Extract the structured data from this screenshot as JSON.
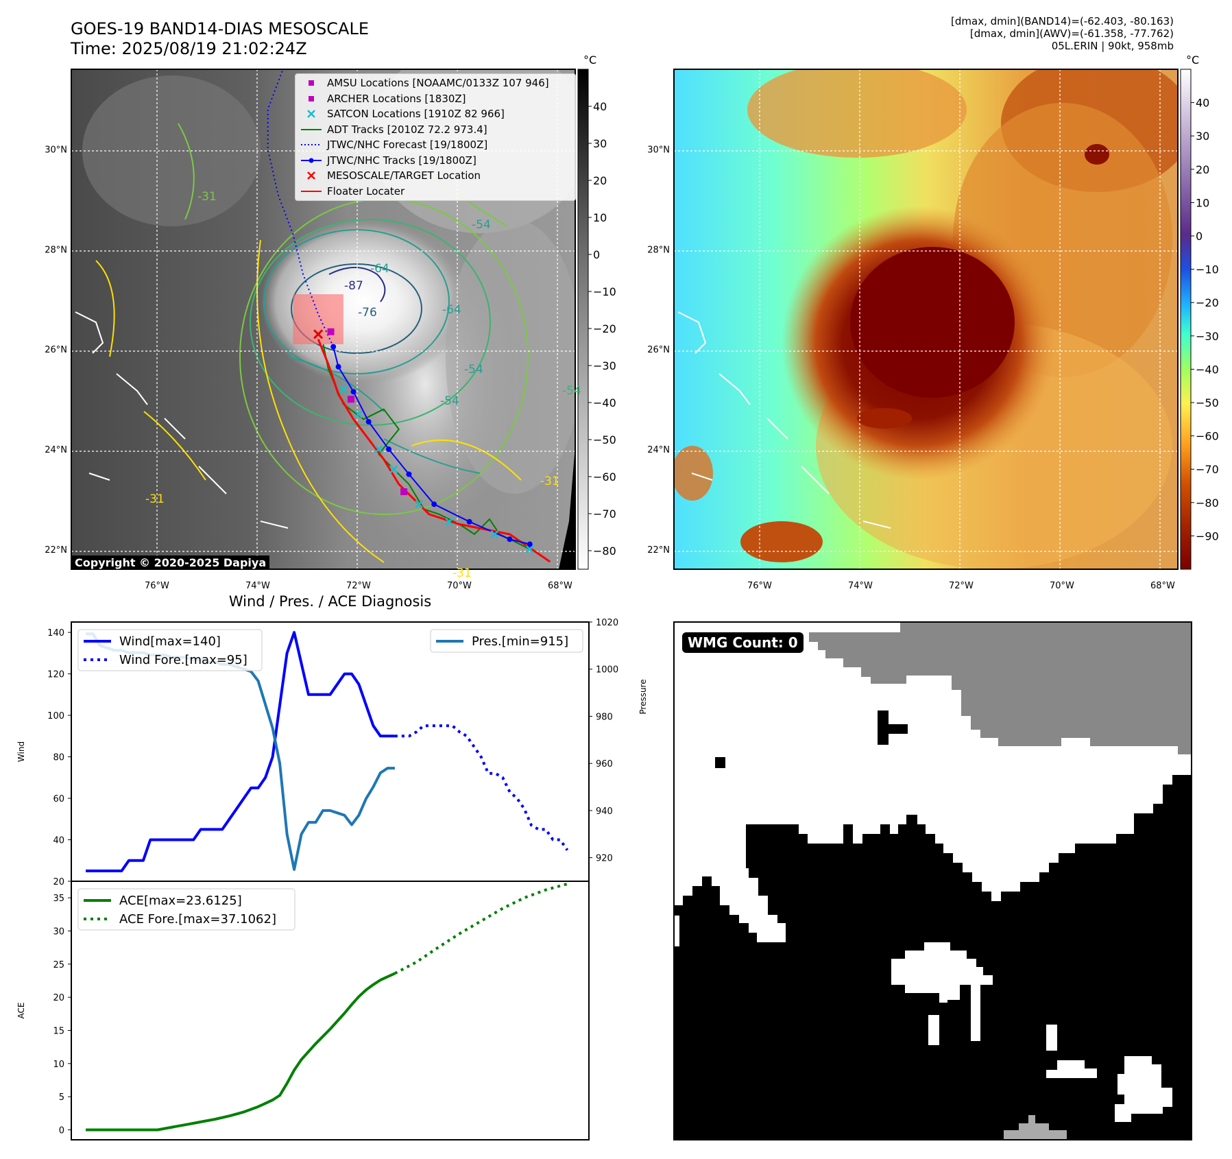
{
  "header": {
    "title_line1": "GOES-19 BAND14-DIAS MESOSCALE",
    "title_line2": "Time: 2025/08/19 21:02:24Z",
    "info_line1": "[dmax, dmin](BAND14)=(-62.403, -80.163)",
    "info_line2": "[dmax, dmin](AWV)=(-61.358, -77.762)",
    "info_line3": "05L.ERIN | 90kt, 958mb"
  },
  "map": {
    "lon_labels": [
      "76°W",
      "74°W",
      "72°W",
      "70°W",
      "68°W"
    ],
    "lat_labels": [
      "30°N",
      "28°N",
      "26°N",
      "24°N",
      "22°N"
    ],
    "lon_range": [
      -77.7,
      -67.7
    ],
    "lat_range": [
      21.6,
      31.6
    ],
    "copyright": "Copyright © 2020-2025 Dapiya",
    "contour_labels": [
      "-87",
      "-76",
      "-64",
      "-64",
      "-54",
      "-54",
      "-54",
      "-31",
      "-31",
      "-31",
      "-31",
      "-54"
    ],
    "legend": [
      {
        "label": "AMSU Locations [NOAAMC/0133Z 107 946]",
        "color": "#c000c0",
        "marker": "square"
      },
      {
        "label": "ARCHER Locations [1830Z]",
        "color": "#c000c0",
        "marker": "square"
      },
      {
        "label": "SATCON Locations [1910Z 82 966]",
        "color": "#17becf",
        "marker": "x"
      },
      {
        "label": "ADT Tracks [2010Z 72.2 973.4]",
        "color": "#008000",
        "marker": "line"
      },
      {
        "label": "JTWC/NHC Forecast [19/1800Z]",
        "color": "#0000ff",
        "marker": "dotted"
      },
      {
        "label": "JTWC/NHC Tracks [19/1800Z]",
        "color": "#0000ff",
        "marker": "line-dot"
      },
      {
        "label": "MESOSCALE/TARGET Location",
        "color": "#ff0000",
        "marker": "x"
      },
      {
        "label": "Floater Locater",
        "color": "#ff0000",
        "marker": "line"
      }
    ],
    "tracks": {
      "jtwc": [
        [
          -68.6,
          22.1
        ],
        [
          -69.0,
          22.2
        ],
        [
          -69.8,
          22.55
        ],
        [
          -70.5,
          22.9
        ],
        [
          -71.0,
          23.5
        ],
        [
          -71.4,
          24.0
        ],
        [
          -71.8,
          24.55
        ],
        [
          -72.1,
          25.15
        ],
        [
          -72.4,
          25.65
        ],
        [
          -72.5,
          26.05
        ]
      ],
      "forecast": [
        [
          -72.5,
          26.05
        ],
        [
          -72.8,
          26.7
        ],
        [
          -73.1,
          27.5
        ],
        [
          -73.3,
          28.3
        ],
        [
          -73.6,
          29.1
        ],
        [
          -73.8,
          30.0
        ],
        [
          -73.8,
          30.8
        ],
        [
          -73.5,
          31.6
        ]
      ],
      "adt": [
        [
          -68.6,
          22.0
        ],
        [
          -69.2,
          22.3
        ],
        [
          -69.4,
          22.6
        ],
        [
          -69.7,
          22.3
        ],
        [
          -70.0,
          22.5
        ],
        [
          -70.4,
          22.7
        ],
        [
          -70.7,
          22.8
        ],
        [
          -71.0,
          23.3
        ],
        [
          -71.3,
          23.6
        ],
        [
          -71.6,
          23.9
        ],
        [
          -71.2,
          24.4
        ],
        [
          -71.5,
          24.8
        ],
        [
          -71.9,
          24.6
        ],
        [
          -72.3,
          24.9
        ],
        [
          -72.6,
          25.6
        ],
        [
          -72.7,
          26.1
        ]
      ],
      "floater": [
        [
          -68.2,
          21.75
        ],
        [
          -69.0,
          22.3
        ],
        [
          -70.0,
          22.5
        ],
        [
          -70.6,
          22.7
        ],
        [
          -71.2,
          23.3
        ],
        [
          -71.5,
          23.8
        ],
        [
          -71.8,
          24.2
        ],
        [
          -72.1,
          24.6
        ],
        [
          -72.4,
          25.1
        ],
        [
          -72.6,
          25.7
        ],
        [
          -72.8,
          26.2
        ]
      ],
      "archer": [
        [
          -72.55,
          26.35
        ],
        [
          -72.15,
          25.0
        ],
        [
          -71.1,
          23.15
        ]
      ],
      "satcon": [
        [
          -72.3,
          25.2
        ],
        [
          -72.0,
          24.7
        ],
        [
          -71.6,
          24.0
        ],
        [
          -71.3,
          23.6
        ],
        [
          -70.8,
          22.9
        ],
        [
          -70.2,
          22.55
        ],
        [
          -69.3,
          22.3
        ],
        [
          -68.6,
          22.0
        ]
      ],
      "target": [
        -72.8,
        26.3
      ],
      "target_box": {
        "lon": [
          -73.3,
          -72.3
        ],
        "lat": [
          26.1,
          27.1
        ]
      }
    },
    "left_colorbar": {
      "unit": "°C",
      "ticks": [
        "40",
        "30",
        "20",
        "10",
        "0",
        "−10",
        "−20",
        "−30",
        "−40",
        "−50",
        "−60",
        "−70",
        "−80"
      ],
      "range": [
        -85,
        50
      ]
    },
    "right_colorbar": {
      "unit": "°C",
      "ticks": [
        "40",
        "30",
        "20",
        "10",
        "0",
        "−10",
        "−20",
        "−30",
        "−40",
        "−50",
        "−60",
        "−70",
        "−80",
        "−90"
      ],
      "range": [
        -100,
        50
      ]
    }
  },
  "chart_data": [
    {
      "type": "line",
      "title": "Wind / Pres. / ACE Diagnosis",
      "ylabel": "Wind",
      "y2label": "Pressure",
      "ylim": [
        20,
        145
      ],
      "y2lim": [
        910,
        1020
      ],
      "yticks": [
        "140",
        "120",
        "100",
        "80",
        "60",
        "40",
        "20"
      ],
      "y2ticks": [
        "1020",
        "1000",
        "980",
        "960",
        "940",
        "920"
      ],
      "x": [
        0,
        1,
        2,
        3,
        4,
        5,
        6,
        7,
        8,
        9,
        10,
        11,
        12,
        13,
        14,
        15,
        16,
        17,
        18,
        19,
        20,
        21,
        22,
        23,
        24,
        25,
        26,
        27,
        28,
        29,
        30,
        31,
        32,
        33,
        34,
        35,
        36,
        37,
        38,
        39,
        40,
        41,
        42,
        43,
        44,
        45,
        46,
        47,
        48,
        49,
        50,
        51,
        52,
        53,
        54,
        55,
        56,
        57,
        58,
        59,
        60,
        61,
        62,
        63,
        64,
        65,
        66,
        67
      ],
      "series": [
        {
          "name": "Wind[max=140]",
          "color": "#0000ff",
          "style": "solid",
          "x": [
            0,
            1,
            2,
            3,
            4,
            5,
            6,
            7,
            8,
            9,
            10,
            11,
            12,
            13,
            14,
            15,
            16,
            17,
            18,
            19,
            20,
            21,
            22,
            23,
            24,
            25,
            26,
            27,
            28,
            29,
            30,
            31,
            32,
            33,
            34,
            35,
            36,
            37,
            38,
            39,
            40,
            41,
            42,
            43
          ],
          "values": [
            25,
            25,
            25,
            25,
            25,
            25,
            30,
            30,
            30,
            40,
            40,
            40,
            40,
            40,
            40,
            40,
            45,
            45,
            45,
            45,
            50,
            55,
            60,
            65,
            65,
            70,
            80,
            105,
            130,
            140,
            125,
            110,
            110,
            110,
            110,
            115,
            120,
            120,
            115,
            105,
            95,
            90,
            90,
            90
          ]
        },
        {
          "name": "Wind Fore.[max=95]",
          "color": "#0000ff",
          "style": "dotted",
          "x": [
            43,
            44,
            45,
            46,
            47,
            48,
            49,
            50,
            51,
            52,
            53,
            54,
            55,
            56,
            57,
            58,
            59,
            60,
            61,
            62,
            63,
            64,
            65,
            66,
            67
          ],
          "values": [
            90,
            90,
            90,
            92,
            95,
            95,
            95,
            95,
            95,
            92,
            90,
            85,
            80,
            72,
            72,
            70,
            63,
            60,
            55,
            47,
            45,
            45,
            40,
            40,
            35
          ]
        },
        {
          "name": "Pres.[min=915]",
          "color": "#1f77b4",
          "style": "solid",
          "axis": "right",
          "x": [
            0,
            1,
            2,
            3,
            4,
            5,
            6,
            7,
            8,
            9,
            10,
            11,
            12,
            13,
            14,
            15,
            16,
            17,
            18,
            19,
            20,
            21,
            22,
            23,
            24,
            25,
            26,
            27,
            28,
            29,
            30,
            31,
            32,
            33,
            34,
            35,
            36,
            37,
            38,
            39,
            40,
            41,
            42,
            43
          ],
          "values": [
            1015,
            1015,
            1010,
            1009,
            1008,
            1008,
            1007,
            1007,
            1007,
            1006,
            1006,
            1006,
            1005,
            1005,
            1005,
            1004,
            1004,
            1003,
            1003,
            1002,
            1002,
            1001,
            1000,
            999,
            995,
            985,
            975,
            960,
            930,
            915,
            930,
            935,
            935,
            940,
            940,
            939,
            938,
            934,
            938,
            945,
            950,
            956,
            958,
            958
          ]
        }
      ]
    },
    {
      "type": "line",
      "ylabel": "ACE",
      "ylim": [
        -1.5,
        37.5
      ],
      "yticks": [
        "35",
        "30",
        "25",
        "20",
        "15",
        "10",
        "5",
        "0"
      ],
      "series": [
        {
          "name": "ACE[max=23.6125]",
          "color": "#008000",
          "style": "solid",
          "x": [
            0,
            2,
            4,
            6,
            8,
            10,
            12,
            14,
            16,
            18,
            20,
            22,
            24,
            26,
            27,
            28,
            29,
            30,
            31,
            32,
            33,
            34,
            35,
            36,
            37,
            38,
            39,
            40,
            41,
            42,
            43
          ],
          "values": [
            0,
            0,
            0,
            0,
            0,
            0,
            0.4,
            0.8,
            1.2,
            1.6,
            2.1,
            2.7,
            3.5,
            4.5,
            5.2,
            7.0,
            9.0,
            10.6,
            11.8,
            13.0,
            14.1,
            15.2,
            16.4,
            17.6,
            18.9,
            20.1,
            21.1,
            21.9,
            22.6,
            23.1,
            23.6
          ]
        },
        {
          "name": "ACE Fore.[max=37.1062]",
          "color": "#008000",
          "style": "dotted",
          "x": [
            43,
            46,
            49,
            52,
            55,
            58,
            61,
            64,
            67
          ],
          "values": [
            23.6,
            25.3,
            27.5,
            29.6,
            31.5,
            33.4,
            35.0,
            36.2,
            37.1
          ]
        }
      ]
    }
  ],
  "wmg": {
    "label": "WMG Count: 0"
  }
}
